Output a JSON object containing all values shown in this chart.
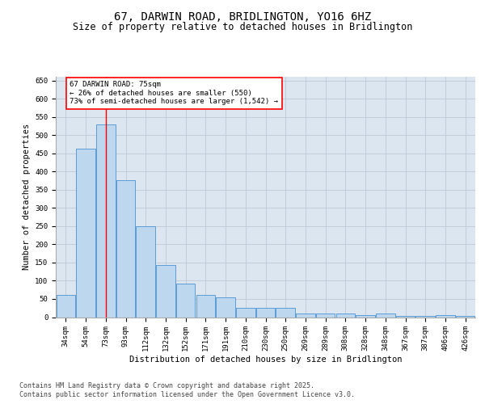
{
  "title_line1": "67, DARWIN ROAD, BRIDLINGTON, YO16 6HZ",
  "title_line2": "Size of property relative to detached houses in Bridlington",
  "xlabel": "Distribution of detached houses by size in Bridlington",
  "ylabel": "Number of detached properties",
  "categories": [
    "34sqm",
    "54sqm",
    "73sqm",
    "93sqm",
    "112sqm",
    "132sqm",
    "152sqm",
    "171sqm",
    "191sqm",
    "210sqm",
    "230sqm",
    "250sqm",
    "269sqm",
    "289sqm",
    "308sqm",
    "328sqm",
    "348sqm",
    "367sqm",
    "387sqm",
    "406sqm",
    "426sqm"
  ],
  "values": [
    62,
    462,
    530,
    375,
    250,
    143,
    92,
    62,
    55,
    26,
    26,
    26,
    11,
    11,
    11,
    6,
    11,
    4,
    4,
    6,
    4
  ],
  "bar_color": "#bdd7ee",
  "bar_edge_color": "#5b9bd5",
  "grid_color": "#c0c8d8",
  "background_color": "#dce6f1",
  "redline_index": 2,
  "annotation_box_text": "67 DARWIN ROAD: 75sqm\n← 26% of detached houses are smaller (550)\n73% of semi-detached houses are larger (1,542) →",
  "annotation_box_color": "red",
  "ylim": [
    0,
    660
  ],
  "yticks": [
    0,
    50,
    100,
    150,
    200,
    250,
    300,
    350,
    400,
    450,
    500,
    550,
    600,
    650
  ],
  "footer_line1": "Contains HM Land Registry data © Crown copyright and database right 2025.",
  "footer_line2": "Contains public sector information licensed under the Open Government Licence v3.0.",
  "title_fontsize": 10,
  "subtitle_fontsize": 8.5,
  "tick_fontsize": 6.5,
  "label_fontsize": 7.5,
  "annot_fontsize": 6.5,
  "footer_fontsize": 6.0
}
